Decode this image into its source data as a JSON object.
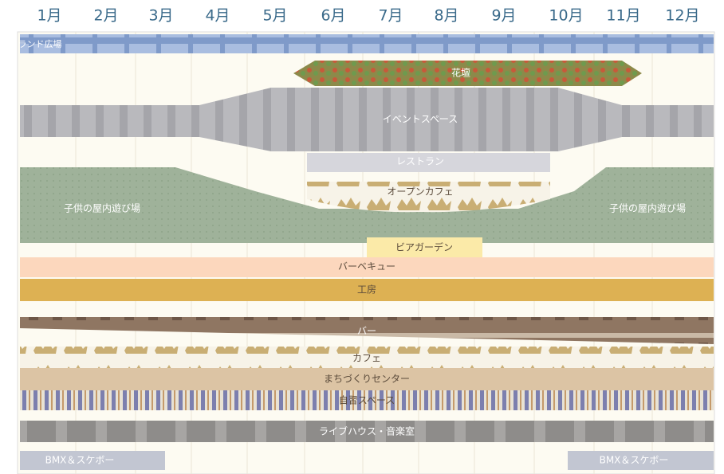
{
  "months": [
    "1月",
    "2月",
    "3月",
    "4月",
    "5月",
    "6月",
    "7月",
    "8月",
    "9月",
    "10月",
    "11月",
    "12月"
  ],
  "areas": [
    "ランド広場",
    "花壇",
    "イベントスペース",
    "レストラン",
    "オープンカフェ",
    "子供の屋内遊び場",
    "子供の屋内遊び場",
    "ビアガーデン",
    "バーベキュー",
    "工房",
    "バー",
    "カフェ",
    "まちづくりセンター",
    "自習スペース",
    "ライブハウス・音楽室",
    "BMX＆スケボー",
    "BMX＆スケボー"
  ]
}
